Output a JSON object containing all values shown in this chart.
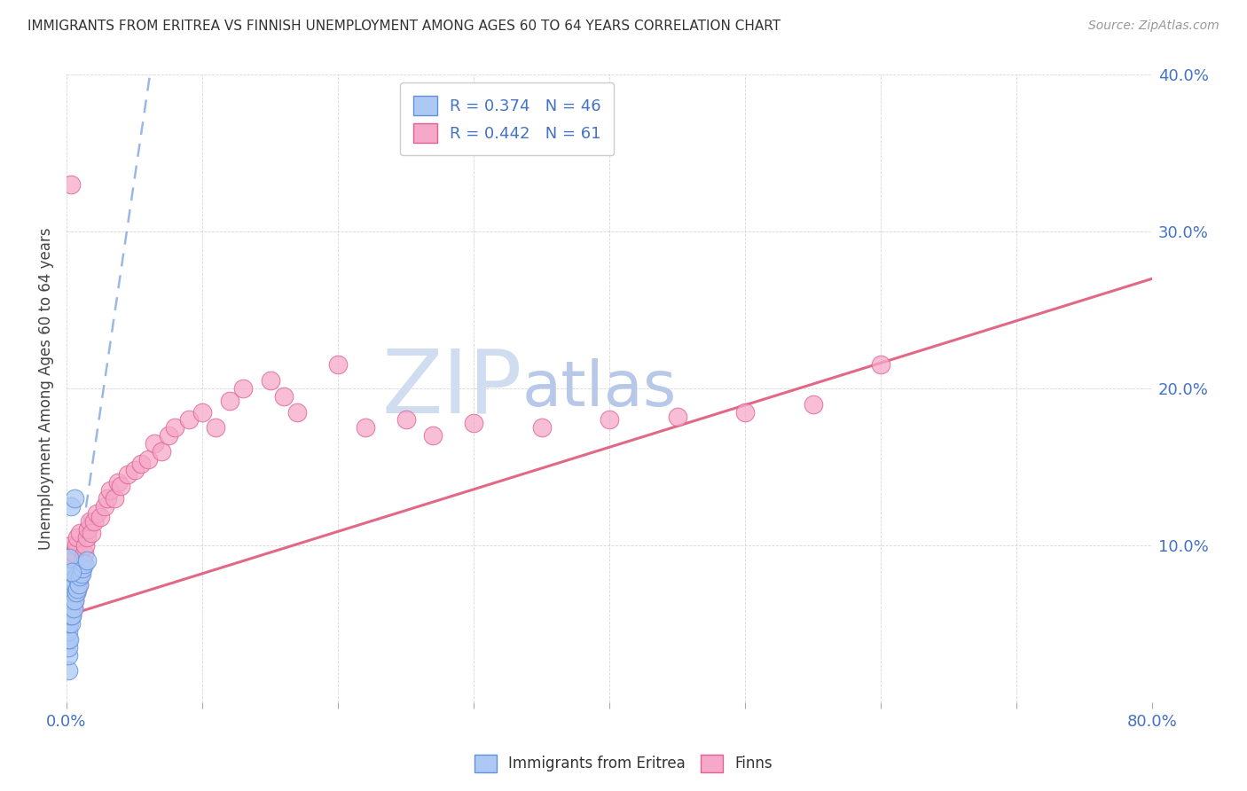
{
  "title": "IMMIGRANTS FROM ERITREA VS FINNISH UNEMPLOYMENT AMONG AGES 60 TO 64 YEARS CORRELATION CHART",
  "source": "Source: ZipAtlas.com",
  "ylabel": "Unemployment Among Ages 60 to 64 years",
  "xlim": [
    0,
    0.8
  ],
  "ylim": [
    0,
    0.4
  ],
  "blue_R": 0.374,
  "blue_N": 46,
  "pink_R": 0.442,
  "pink_N": 61,
  "blue_color": "#adc8f5",
  "pink_color": "#f5a8c8",
  "blue_edge": "#6090d8",
  "pink_edge": "#e06090",
  "trend_blue_color": "#90b0e0",
  "trend_pink_color": "#e06080",
  "watermark_zip_color": "#c8d8f0",
  "watermark_atlas_color": "#c8d0e8",
  "background_color": "#ffffff",
  "blue_x": [
    0.001,
    0.001,
    0.001,
    0.001,
    0.001,
    0.001,
    0.001,
    0.001,
    0.001,
    0.001,
    0.002,
    0.002,
    0.002,
    0.002,
    0.002,
    0.002,
    0.002,
    0.002,
    0.003,
    0.003,
    0.003,
    0.003,
    0.003,
    0.003,
    0.004,
    0.004,
    0.004,
    0.004,
    0.005,
    0.005,
    0.005,
    0.006,
    0.006,
    0.007,
    0.007,
    0.008,
    0.009,
    0.01,
    0.011,
    0.012,
    0.013,
    0.015,
    0.003,
    0.002,
    0.004,
    0.006
  ],
  "blue_y": [
    0.02,
    0.03,
    0.035,
    0.04,
    0.045,
    0.05,
    0.055,
    0.06,
    0.065,
    0.07,
    0.04,
    0.05,
    0.055,
    0.06,
    0.065,
    0.07,
    0.075,
    0.08,
    0.05,
    0.055,
    0.06,
    0.065,
    0.07,
    0.075,
    0.055,
    0.065,
    0.075,
    0.082,
    0.06,
    0.07,
    0.078,
    0.065,
    0.075,
    0.07,
    0.08,
    0.072,
    0.075,
    0.08,
    0.082,
    0.085,
    0.088,
    0.09,
    0.125,
    0.092,
    0.083,
    0.13
  ],
  "pink_x": [
    0.002,
    0.003,
    0.003,
    0.004,
    0.004,
    0.005,
    0.005,
    0.006,
    0.006,
    0.007,
    0.007,
    0.008,
    0.008,
    0.009,
    0.01,
    0.01,
    0.011,
    0.012,
    0.013,
    0.014,
    0.015,
    0.016,
    0.017,
    0.018,
    0.02,
    0.022,
    0.025,
    0.028,
    0.03,
    0.032,
    0.035,
    0.038,
    0.04,
    0.045,
    0.05,
    0.055,
    0.06,
    0.065,
    0.07,
    0.075,
    0.08,
    0.09,
    0.1,
    0.11,
    0.12,
    0.13,
    0.15,
    0.16,
    0.17,
    0.2,
    0.22,
    0.25,
    0.27,
    0.3,
    0.35,
    0.4,
    0.45,
    0.5,
    0.55,
    0.6,
    0.003
  ],
  "pink_y": [
    0.08,
    0.06,
    0.1,
    0.055,
    0.09,
    0.06,
    0.095,
    0.065,
    0.095,
    0.07,
    0.1,
    0.072,
    0.105,
    0.075,
    0.08,
    0.108,
    0.085,
    0.09,
    0.095,
    0.1,
    0.105,
    0.11,
    0.115,
    0.108,
    0.115,
    0.12,
    0.118,
    0.125,
    0.13,
    0.135,
    0.13,
    0.14,
    0.138,
    0.145,
    0.148,
    0.152,
    0.155,
    0.165,
    0.16,
    0.17,
    0.175,
    0.18,
    0.185,
    0.175,
    0.192,
    0.2,
    0.205,
    0.195,
    0.185,
    0.215,
    0.175,
    0.18,
    0.17,
    0.178,
    0.175,
    0.18,
    0.182,
    0.185,
    0.19,
    0.215,
    0.33
  ]
}
